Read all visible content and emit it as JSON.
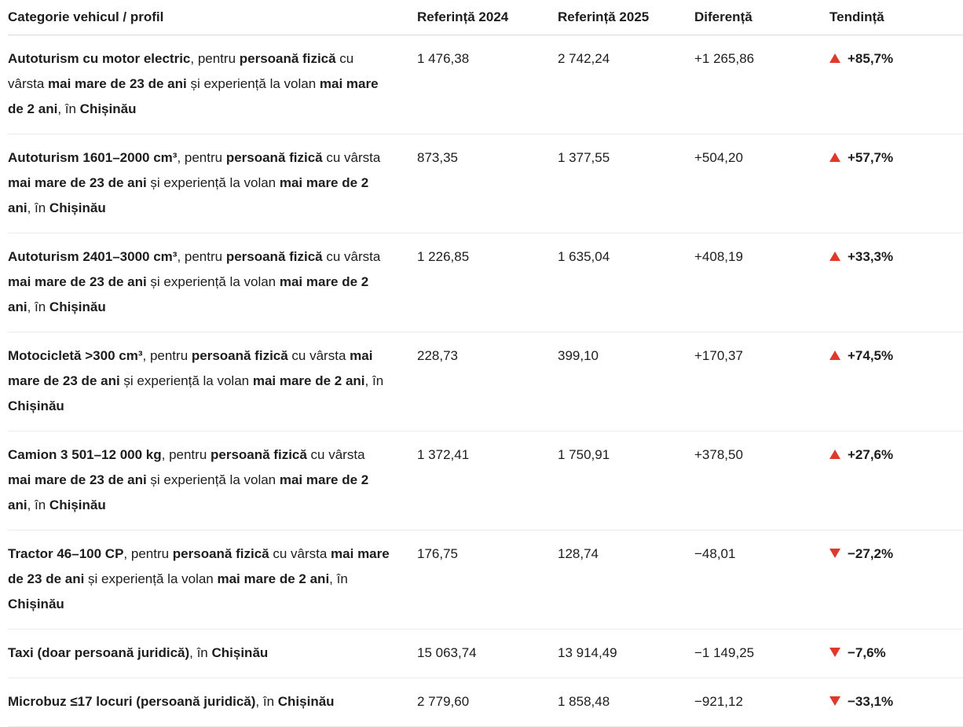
{
  "colors": {
    "text": "#1d1d1f",
    "header_border": "#d9d9d9",
    "row_border": "#ececec",
    "trend_red": "#e0392b",
    "background": "#ffffff"
  },
  "table": {
    "columns": [
      {
        "label": "Categorie vehicul / profil"
      },
      {
        "label": "Referință 2024"
      },
      {
        "label": "Referință 2025"
      },
      {
        "label": "Diferență"
      },
      {
        "label": "Tendință"
      }
    ],
    "rows": [
      {
        "category_segments": [
          {
            "t": "Autoturism cu motor electric",
            "b": true
          },
          {
            "t": ", pentru ",
            "b": false
          },
          {
            "t": "persoană fizică",
            "b": true
          },
          {
            "t": " cu vârsta ",
            "b": false
          },
          {
            "t": "mai mare de 23 de ani",
            "b": true
          },
          {
            "t": " și experiență la volan ",
            "b": false
          },
          {
            "t": "mai mare de 2 ani",
            "b": true
          },
          {
            "t": ", în ",
            "b": false
          },
          {
            "t": "Chișinău",
            "b": true
          }
        ],
        "ref_2024": "1 476,38",
        "ref_2025": "2 742,24",
        "difference": "+1 265,86",
        "trend": {
          "direction": "up",
          "value": "+85,7%"
        }
      },
      {
        "category_segments": [
          {
            "t": "Autoturism 1601–2000 cm³",
            "b": true
          },
          {
            "t": ", pentru ",
            "b": false
          },
          {
            "t": "persoană fizică",
            "b": true
          },
          {
            "t": " cu vârsta ",
            "b": false
          },
          {
            "t": "mai mare de 23 de ani",
            "b": true
          },
          {
            "t": " și experiență la volan ",
            "b": false
          },
          {
            "t": "mai mare de 2 ani",
            "b": true
          },
          {
            "t": ", în ",
            "b": false
          },
          {
            "t": "Chișinău",
            "b": true
          }
        ],
        "ref_2024": "873,35",
        "ref_2025": "1 377,55",
        "difference": "+504,20",
        "trend": {
          "direction": "up",
          "value": "+57,7%"
        }
      },
      {
        "category_segments": [
          {
            "t": "Autoturism 2401–3000 cm³",
            "b": true
          },
          {
            "t": ", pentru ",
            "b": false
          },
          {
            "t": "persoană fizică",
            "b": true
          },
          {
            "t": " cu vârsta ",
            "b": false
          },
          {
            "t": "mai mare de 23 de ani",
            "b": true
          },
          {
            "t": " și experiență la volan ",
            "b": false
          },
          {
            "t": "mai mare de 2 ani",
            "b": true
          },
          {
            "t": ", în ",
            "b": false
          },
          {
            "t": "Chișinău",
            "b": true
          }
        ],
        "ref_2024": "1 226,85",
        "ref_2025": "1 635,04",
        "difference": "+408,19",
        "trend": {
          "direction": "up",
          "value": "+33,3%"
        }
      },
      {
        "category_segments": [
          {
            "t": "Motocicletă >300 cm³",
            "b": true
          },
          {
            "t": ", pentru ",
            "b": false
          },
          {
            "t": "persoană fizică",
            "b": true
          },
          {
            "t": " cu vârsta ",
            "b": false
          },
          {
            "t": "mai mare de 23 de ani",
            "b": true
          },
          {
            "t": " și experiență la volan ",
            "b": false
          },
          {
            "t": "mai mare de 2 ani",
            "b": true
          },
          {
            "t": ", în ",
            "b": false
          },
          {
            "t": "Chișinău",
            "b": true
          }
        ],
        "ref_2024": "228,73",
        "ref_2025": "399,10",
        "difference": "+170,37",
        "trend": {
          "direction": "up",
          "value": "+74,5%"
        }
      },
      {
        "category_segments": [
          {
            "t": "Camion 3 501–12 000 kg",
            "b": true
          },
          {
            "t": ", pentru ",
            "b": false
          },
          {
            "t": "persoană fizică",
            "b": true
          },
          {
            "t": " cu vârsta ",
            "b": false
          },
          {
            "t": "mai mare de 23 de ani",
            "b": true
          },
          {
            "t": " și experiență la volan ",
            "b": false
          },
          {
            "t": "mai mare de 2 ani",
            "b": true
          },
          {
            "t": ", în ",
            "b": false
          },
          {
            "t": "Chișinău",
            "b": true
          }
        ],
        "ref_2024": "1 372,41",
        "ref_2025": "1 750,91",
        "difference": "+378,50",
        "trend": {
          "direction": "up",
          "value": "+27,6%"
        }
      },
      {
        "category_segments": [
          {
            "t": "Tractor 46–100 CP",
            "b": true
          },
          {
            "t": ", pentru ",
            "b": false
          },
          {
            "t": "persoană fizică",
            "b": true
          },
          {
            "t": " cu vârsta ",
            "b": false
          },
          {
            "t": "mai mare de 23 de ani",
            "b": true
          },
          {
            "t": " și experiență la volan ",
            "b": false
          },
          {
            "t": "mai mare de 2 ani",
            "b": true
          },
          {
            "t": ", în ",
            "b": false
          },
          {
            "t": "Chișinău",
            "b": true
          }
        ],
        "ref_2024": "176,75",
        "ref_2025": "128,74",
        "difference": "−48,01",
        "trend": {
          "direction": "down",
          "value": "−27,2%"
        }
      },
      {
        "category_segments": [
          {
            "t": "Taxi (doar persoană juridică)",
            "b": true
          },
          {
            "t": ", în ",
            "b": false
          },
          {
            "t": "Chișinău",
            "b": true
          }
        ],
        "ref_2024": "15 063,74",
        "ref_2025": "13 914,49",
        "difference": "−1 149,25",
        "trend": {
          "direction": "down",
          "value": "−7,6%"
        }
      },
      {
        "category_segments": [
          {
            "t": "Microbuz ≤17 locuri (persoană juridică)",
            "b": true
          },
          {
            "t": ", în ",
            "b": false
          },
          {
            "t": "Chișinău",
            "b": true
          }
        ],
        "ref_2024": "2 779,60",
        "ref_2025": "1 858,48",
        "difference": "−921,12",
        "trend": {
          "direction": "down",
          "value": "−33,1%"
        }
      }
    ]
  }
}
